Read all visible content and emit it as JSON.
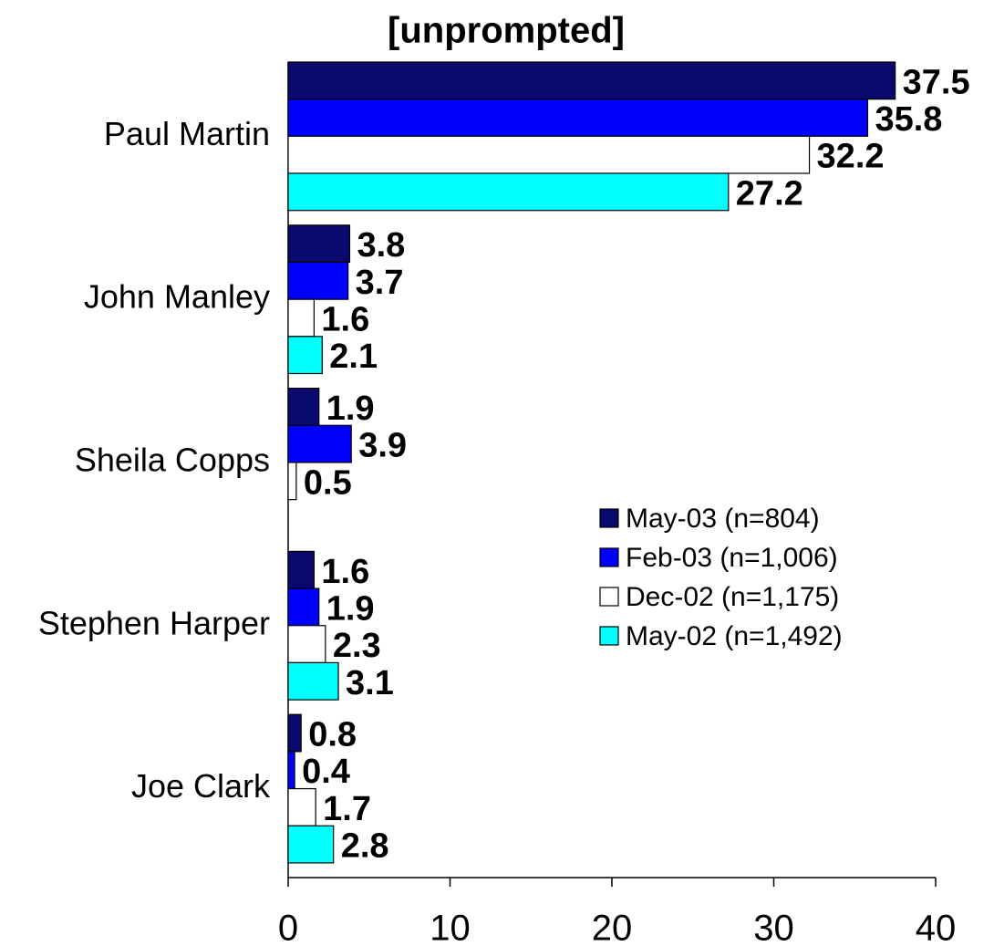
{
  "chart_data": {
    "type": "barh",
    "title": "[unprompted]",
    "categories": [
      "Paul Martin",
      "John Manley",
      "Sheila Copps",
      "Stephen Harper",
      "Joe Clark"
    ],
    "series": [
      {
        "name": "May-03 (n=804)",
        "color": "#0a0a6e",
        "values": [
          37.5,
          3.8,
          1.9,
          1.6,
          0.8
        ]
      },
      {
        "name": "Feb-03 (n=1,006)",
        "color": "#0000ff",
        "values": [
          35.8,
          3.7,
          3.9,
          1.9,
          0.4
        ]
      },
      {
        "name": "Dec-02 (n=1,175)",
        "color": "#ffffff",
        "values": [
          32.2,
          1.6,
          0.5,
          2.3,
          1.7
        ]
      },
      {
        "name": "May-02 (n=1,492)",
        "color": "#00ffff",
        "values": [
          27.2,
          2.1,
          null,
          3.1,
          2.8
        ]
      }
    ],
    "xlim": [
      0,
      40
    ],
    "xticks": [
      0,
      10,
      20,
      30,
      40
    ],
    "grid": false,
    "legend": "right"
  }
}
